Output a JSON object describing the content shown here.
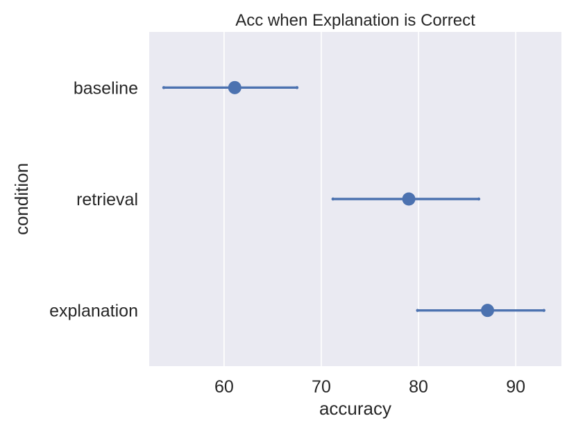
{
  "chart_data": {
    "type": "scatter",
    "title": "Acc when Explanation is Correct",
    "xlabel": "accuracy",
    "ylabel": "condition",
    "xlim": [
      52.3,
      94.7
    ],
    "xticks": [
      60,
      70,
      80,
      90
    ],
    "grid": "vertical",
    "categories": [
      "baseline",
      "retrieval",
      "explanation"
    ],
    "values": [
      61.1,
      79.0,
      87.1
    ],
    "ci_low": [
      53.8,
      71.2,
      79.9
    ],
    "ci_high": [
      67.5,
      86.2,
      92.9
    ],
    "colors": {
      "plot_background": "#eaeaf2",
      "gridline": "#ffffff",
      "marker": "#4c72b0",
      "text": "#262626"
    }
  }
}
